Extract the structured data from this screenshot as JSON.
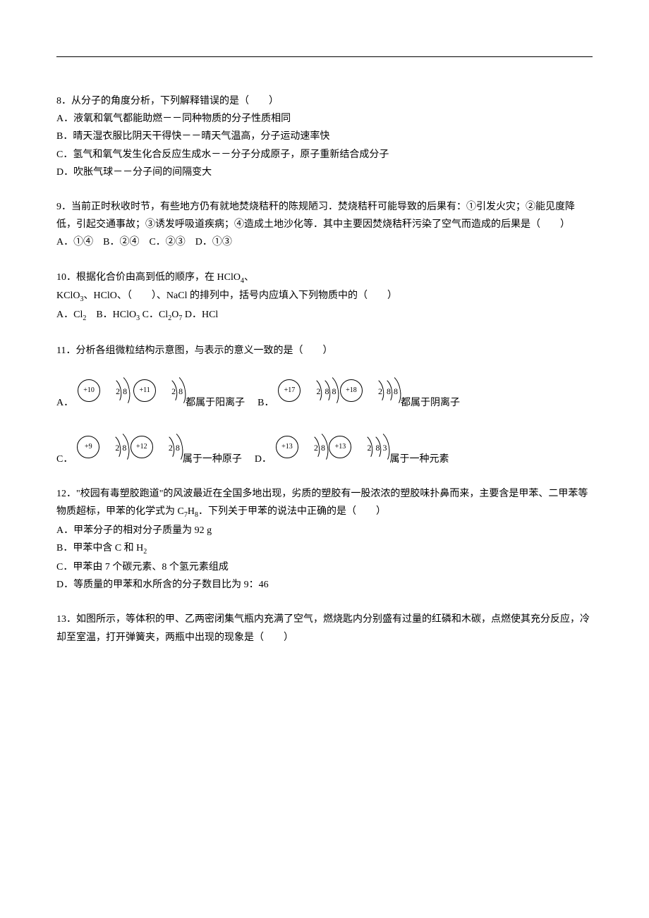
{
  "q8": {
    "stem": "8．从分子的角度分析，下列解释错误的是（　　）",
    "A": "A．液氧和氧气都能助燃－－同种物质的分子性质相同",
    "B": "B．晴天湿衣服比阴天干得快－－晴天气温高，分子运动速率快",
    "C": "C．氢气和氧气发生化合反应生成水－－分子分成原子，原子重新结合成分子",
    "D": "D．吹胀气球－－分子间的间隔变大"
  },
  "q9": {
    "stem": "9．当前正时秋收时节，有些地方仍有就地焚烧秸秆的陈规陋习．焚烧秸秆可能导致的后果有：①引发火灾；②能见度降低，引起交通事故；③诱发呼吸道疾病；④造成土地沙化等．其中主要因焚烧秸秆污染了空气而造成的后果是（　　）",
    "opts": "A．①④　B．②④　C．②③　D．①③"
  },
  "q10": {
    "stem_a": "10．根据化合价由高到低的顺序，在 HClO",
    "stem_b": "、KClO",
    "stem_c": "、HClO、（　　）、NaCl 的排列中，括号内应填入下列物质中的（　　）",
    "A_pre": "A．Cl",
    "B_pre": "　B．HClO",
    "C_pre": " C．Cl",
    "C_mid": "O",
    "D": " D．HCl"
  },
  "q11": {
    "stem": "11．分析各组微粒结构示意图，与表示的意义一致的是（　　）",
    "A": {
      "n1": "+10",
      "s1": [
        "2",
        "8"
      ],
      "n2": "+11",
      "s2": [
        "2",
        "8"
      ],
      "tail": "都属于阳离子"
    },
    "B": {
      "n1": "+17",
      "s1": [
        "2",
        "8",
        "8"
      ],
      "n2": "+18",
      "s2": [
        "2",
        "8",
        "8"
      ],
      "tail": "都属于阴离子"
    },
    "C": {
      "n1": "+9",
      "s1": [
        "2",
        "8"
      ],
      "n2": "+12",
      "s2": [
        "2",
        "8"
      ],
      "tail": "属于一种原子"
    },
    "D": {
      "n1": "+13",
      "s1": [
        "2",
        "8"
      ],
      "n2": "+13",
      "s2": [
        "2",
        "8",
        "3"
      ],
      "tail": "属于一种元素"
    },
    "labels": {
      "A": "A．",
      "B": "B．",
      "C": "C．",
      "D": "D．"
    }
  },
  "q12": {
    "stem_a": "12．\"校园有毒塑胶跑道\"的风波最近在全国多地出现，劣质的塑胶有一股浓浓的塑胶味扑鼻而来，主要含是甲苯、二甲苯等物质超标，甲苯的化学式为 C",
    "stem_b": "H",
    "stem_c": "．下列关于甲苯的说法中正确的是（　　）",
    "A": "A．甲苯分子的相对分子质量为 92 g",
    "B_pre": "B．甲苯中含 C 和 H",
    "C": "C．甲苯由 7 个碳元素、8 个氢元素组成",
    "D": "D．等质量的甲苯和水所含的分子数目比为 9：46"
  },
  "q13": {
    "stem": "13．如图所示，等体积的甲、乙两密闭集气瓶内充满了空气，燃烧匙内分别盛有过量的红磷和木碳，点燃使其充分反应，冷却至室温，打开弹簧夹，两瓶中出现的现象是（　　）"
  }
}
